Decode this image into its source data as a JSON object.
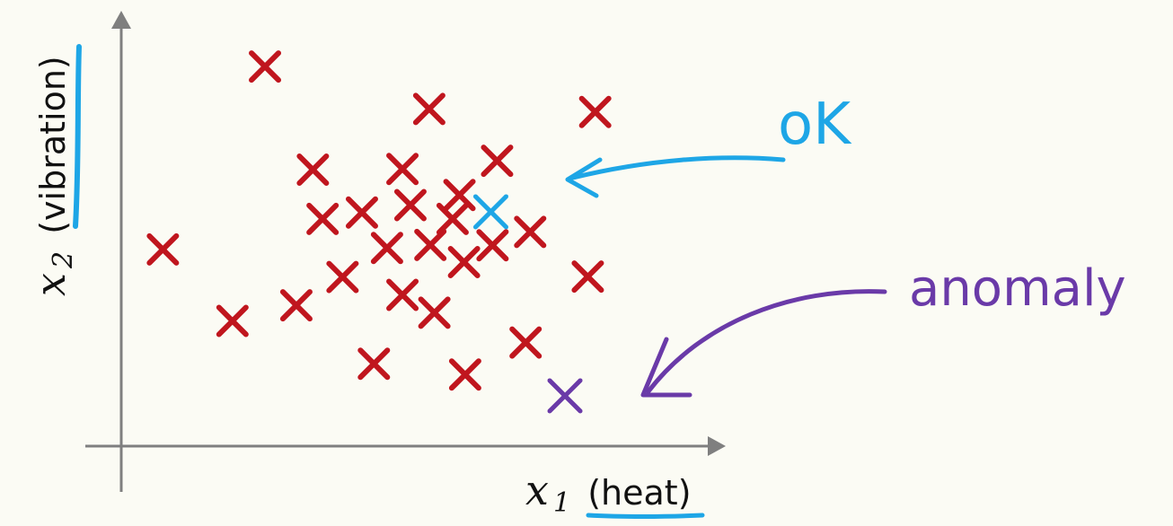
{
  "chart_data": {
    "type": "scatter",
    "xlabel": {
      "var": "x",
      "sub": "1",
      "text": "(heat)"
    },
    "ylabel": {
      "var": "x",
      "sub": "2",
      "text": "(vibration)"
    },
    "xlim": [
      0,
      100
    ],
    "ylim": [
      0,
      100
    ],
    "grid": false,
    "series": [
      {
        "role": "normal",
        "color": "#c0161e",
        "points": [
          [
            25.2,
            95.4
          ],
          [
            54.0,
            84.0
          ],
          [
            83.1,
            83.2
          ],
          [
            33.6,
            67.7
          ],
          [
            49.3,
            67.9
          ],
          [
            65.9,
            70.1
          ],
          [
            59.3,
            60.9
          ],
          [
            50.7,
            58.2
          ],
          [
            42.2,
            56.2
          ],
          [
            58.1,
            54.5
          ],
          [
            35.3,
            54.5
          ],
          [
            71.7,
            51.0
          ],
          [
            7.3,
            46.3
          ],
          [
            46.6,
            46.7
          ],
          [
            54.2,
            47.5
          ],
          [
            65.1,
            47.4
          ],
          [
            60.1,
            42.9
          ],
          [
            38.8,
            38.9
          ],
          [
            49.3,
            34.1
          ],
          [
            81.8,
            39.0
          ],
          [
            19.5,
            27.1
          ],
          [
            30.7,
            31.3
          ],
          [
            54.9,
            29.3
          ],
          [
            70.9,
            21.3
          ],
          [
            44.3,
            15.6
          ],
          [
            60.3,
            12.7
          ]
        ]
      },
      {
        "role": "ok",
        "color": "#1ea6e6",
        "points": [
          [
            64.8,
            56.4
          ]
        ]
      },
      {
        "role": "anomaly",
        "color": "#6a3aa8",
        "points": [
          [
            77.8,
            7.0
          ]
        ]
      }
    ],
    "annotations": [
      {
        "text": "oK",
        "target": "ok",
        "color": "#1ea6e6"
      },
      {
        "text": "anomaly",
        "target": "anomaly",
        "color": "#6a3aa8"
      }
    ]
  }
}
